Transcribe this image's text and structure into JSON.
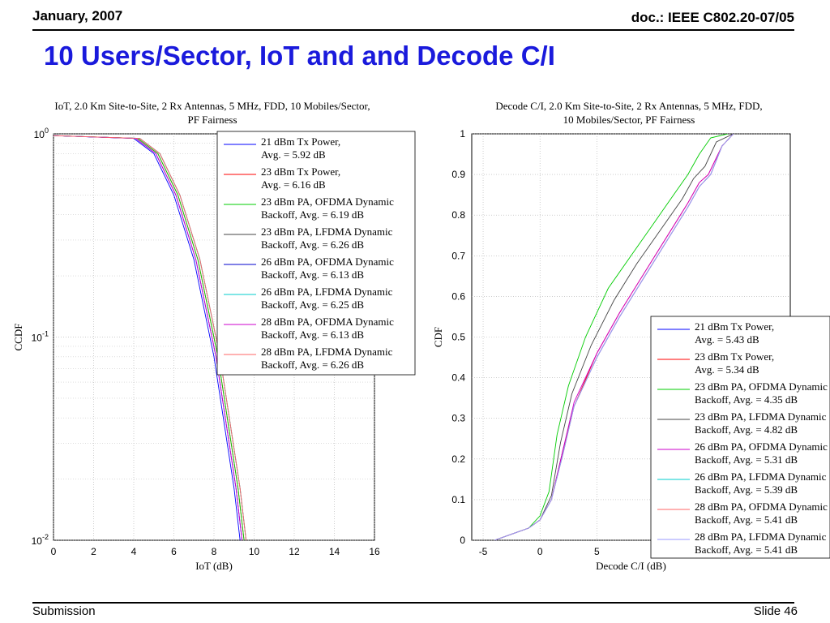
{
  "header": {
    "date": "January, 2007",
    "doc": "doc.: IEEE C802.20-07/05"
  },
  "slide": {
    "title": "10 Users/Sector, IoT and and Decode C/I"
  },
  "footer": {
    "left": "Submission",
    "right": "Slide 46"
  },
  "chart_data": [
    {
      "type": "line",
      "title": "IoT, 2.0 Km Site-to-Site, 2 Rx Antennas, 5 MHz, FDD, 10 Mobiles/Sector,",
      "subtitle": "PF Fairness",
      "xlabel": "IoT (dB)",
      "ylabel": "CCDF",
      "xlim": [
        0,
        16
      ],
      "ylim": [
        0.01,
        1
      ],
      "yscale": "log",
      "grid": true,
      "legend_position": "top-right",
      "x_ticks": [
        "0",
        "2",
        "4",
        "6",
        "8",
        "10",
        "12",
        "14",
        "16"
      ],
      "series": [
        {
          "name": "21 dBm Tx Power,",
          "name2": "Avg. = 5.92 dB",
          "color": "#0000ff",
          "x": [
            0,
            4,
            5,
            6,
            7,
            8,
            9,
            9.3
          ],
          "y": [
            0.98,
            0.95,
            0.8,
            0.5,
            0.24,
            0.08,
            0.018,
            0.01
          ]
        },
        {
          "name": "23 dBm Tx Power,",
          "name2": "Avg. = 6.16 dB",
          "color": "#ff0000",
          "x": [
            0,
            4.2,
            5.2,
            6.2,
            7.2,
            8.2,
            9.2,
            9.5
          ],
          "y": [
            0.98,
            0.95,
            0.8,
            0.5,
            0.24,
            0.08,
            0.018,
            0.01
          ]
        },
        {
          "name": "23 dBm PA, OFDMA Dynamic",
          "name2": "Backoff, Avg. = 6.19 dB",
          "color": "#00cc00",
          "x": [
            0,
            4.2,
            5.2,
            6.2,
            7.2,
            8.2,
            9.2,
            9.5
          ],
          "y": [
            0.98,
            0.95,
            0.8,
            0.5,
            0.24,
            0.08,
            0.018,
            0.01
          ]
        },
        {
          "name": "23 dBm PA, LFDMA Dynamic",
          "name2": "Backoff, Avg. = 6.26 dB",
          "color": "#444444",
          "x": [
            0,
            4.3,
            5.3,
            6.3,
            7.3,
            8.3,
            9.3,
            9.6
          ],
          "y": [
            0.98,
            0.95,
            0.8,
            0.5,
            0.24,
            0.08,
            0.018,
            0.01
          ]
        },
        {
          "name": "26 dBm PA, OFDMA Dynamic",
          "name2": "Backoff, Avg. = 6.13 dB",
          "color": "#0000cc",
          "x": [
            0,
            4.1,
            5.1,
            6.1,
            7.1,
            8.1,
            9.1,
            9.4
          ],
          "y": [
            0.98,
            0.95,
            0.8,
            0.5,
            0.24,
            0.08,
            0.018,
            0.01
          ]
        },
        {
          "name": "26 dBm PA, LFDMA Dynamic",
          "name2": "Backoff, Avg. = 6.25 dB",
          "color": "#00cccc",
          "x": [
            0,
            4.3,
            5.3,
            6.3,
            7.3,
            8.3,
            9.3,
            9.6
          ],
          "y": [
            0.98,
            0.95,
            0.8,
            0.5,
            0.24,
            0.08,
            0.018,
            0.01
          ]
        },
        {
          "name": "28 dBm PA, OFDMA Dynamic",
          "name2": "Backoff, Avg. = 6.13 dB",
          "color": "#cc00cc",
          "x": [
            0,
            4.1,
            5.1,
            6.1,
            7.1,
            8.1,
            9.1,
            9.4
          ],
          "y": [
            0.98,
            0.95,
            0.8,
            0.5,
            0.24,
            0.08,
            0.018,
            0.01
          ]
        },
        {
          "name": "28 dBm PA, LFDMA Dynamic",
          "name2": "Backoff, Avg. = 6.26 dB",
          "color": "#ff6666",
          "x": [
            0,
            4.3,
            5.3,
            6.3,
            7.3,
            8.3,
            9.3,
            9.6
          ],
          "y": [
            0.98,
            0.95,
            0.8,
            0.5,
            0.24,
            0.08,
            0.018,
            0.01
          ]
        }
      ]
    },
    {
      "type": "line",
      "title": "Decode C/I, 2.0 Km Site-to-Site, 2 Rx Antennas, 5 MHz, FDD,",
      "subtitle": "10 Mobiles/Sector, PF Fairness",
      "xlabel": "Decode C/I (dB)",
      "ylabel": "CDF",
      "xlim": [
        -6,
        22
      ],
      "ylim": [
        0,
        1
      ],
      "yscale": "linear",
      "grid": true,
      "legend_position": "bottom-right",
      "x_ticks": [
        "-5",
        "0",
        "5"
      ],
      "y_ticks": [
        "0",
        "0.1",
        "0.2",
        "0.3",
        "0.4",
        "0.5",
        "0.6",
        "0.7",
        "0.8",
        "0.9",
        "1"
      ],
      "series": [
        {
          "name": "21 dBm Tx Power,",
          "name2": "Avg. = 5.43 dB",
          "color": "#0000ff",
          "x": [
            -4,
            -1,
            0,
            1,
            2,
            3,
            5,
            7,
            9,
            11,
            13,
            14,
            15,
            16,
            17
          ],
          "y": [
            0,
            0.03,
            0.05,
            0.1,
            0.22,
            0.33,
            0.45,
            0.55,
            0.64,
            0.73,
            0.82,
            0.87,
            0.9,
            0.97,
            1.0
          ]
        },
        {
          "name": "23 dBm Tx Power,",
          "name2": "Avg. = 5.34 dB",
          "color": "#ff0000",
          "x": [
            -4,
            -1,
            0,
            1,
            2,
            3,
            5,
            7,
            9,
            11,
            13,
            14,
            14.8,
            16,
            17
          ],
          "y": [
            0,
            0.03,
            0.05,
            0.1,
            0.22,
            0.33,
            0.46,
            0.56,
            0.65,
            0.74,
            0.83,
            0.88,
            0.9,
            0.97,
            1.0
          ]
        },
        {
          "name": "23 dBm PA, OFDMA Dynamic",
          "name2": "Backoff, Avg. = 4.35 dB",
          "color": "#00cc00",
          "x": [
            -4,
            -1,
            0,
            0.8,
            1.5,
            2.5,
            4,
            6,
            8,
            10,
            12,
            13,
            14,
            15,
            16.5
          ],
          "y": [
            0,
            0.03,
            0.06,
            0.12,
            0.26,
            0.38,
            0.5,
            0.62,
            0.7,
            0.78,
            0.86,
            0.9,
            0.95,
            0.99,
            1.0
          ]
        },
        {
          "name": "23 dBm PA, LFDMA Dynamic",
          "name2": "Backoff, Avg. = 4.82 dB",
          "color": "#444444",
          "x": [
            -4,
            -1,
            0,
            1,
            1.8,
            2.8,
            4.5,
            6.5,
            8.5,
            10.5,
            12.5,
            13.5,
            14.5,
            15.5,
            17
          ],
          "y": [
            0,
            0.03,
            0.05,
            0.11,
            0.24,
            0.36,
            0.48,
            0.59,
            0.68,
            0.76,
            0.84,
            0.89,
            0.92,
            0.98,
            1.0
          ]
        },
        {
          "name": "26 dBm PA, OFDMA Dynamic",
          "name2": "Backoff, Avg. = 5.31 dB",
          "color": "#cc00cc",
          "x": [
            -4,
            -1,
            0,
            1,
            2,
            3,
            5,
            7,
            9,
            11,
            13,
            14,
            14.8,
            16,
            17
          ],
          "y": [
            0,
            0.03,
            0.05,
            0.1,
            0.22,
            0.34,
            0.46,
            0.56,
            0.65,
            0.74,
            0.83,
            0.88,
            0.9,
            0.97,
            1.0
          ]
        },
        {
          "name": "26 dBm PA, LFDMA Dynamic",
          "name2": "Backoff, Avg. = 5.39 dB",
          "color": "#00cccc",
          "x": [
            -4,
            -1,
            0,
            1,
            2,
            3,
            5,
            7,
            9,
            11,
            13,
            14,
            15,
            16,
            17
          ],
          "y": [
            0,
            0.03,
            0.05,
            0.1,
            0.21,
            0.33,
            0.45,
            0.55,
            0.64,
            0.73,
            0.82,
            0.87,
            0.9,
            0.97,
            1.0
          ]
        },
        {
          "name": "28 dBm PA, OFDMA Dynamic",
          "name2": "Backoff, Avg. = 5.41 dB",
          "color": "#ff6666",
          "x": [
            -4,
            -1,
            0,
            1,
            2,
            3,
            5,
            7,
            9,
            11,
            13,
            14,
            15,
            16,
            17
          ],
          "y": [
            0,
            0.03,
            0.05,
            0.1,
            0.21,
            0.33,
            0.45,
            0.55,
            0.64,
            0.73,
            0.82,
            0.87,
            0.9,
            0.97,
            1.0
          ]
        },
        {
          "name": "28 dBm PA, LFDMA Dynamic",
          "name2": "Backoff, Avg. = 5.41 dB",
          "color": "#9999ff",
          "x": [
            -4,
            -1,
            0,
            1,
            2,
            3,
            5,
            7,
            9,
            11,
            13,
            14,
            15,
            16,
            17
          ],
          "y": [
            0,
            0.03,
            0.05,
            0.1,
            0.21,
            0.33,
            0.45,
            0.55,
            0.64,
            0.73,
            0.82,
            0.87,
            0.9,
            0.97,
            1.0
          ]
        }
      ]
    }
  ]
}
